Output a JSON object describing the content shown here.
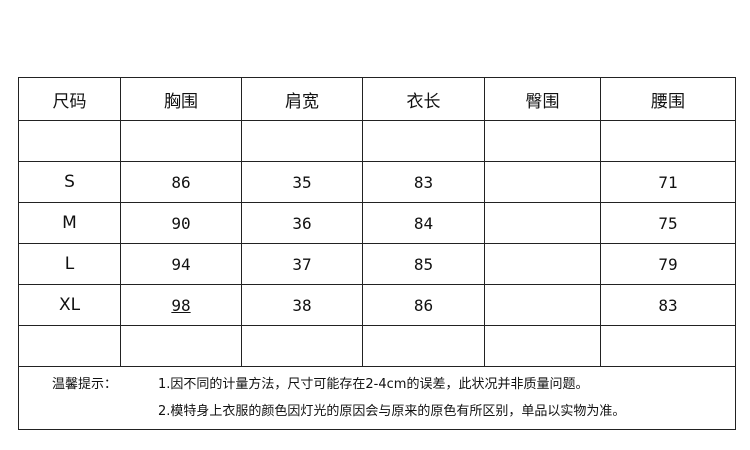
{
  "table": {
    "headers": [
      "尺码",
      "胸围",
      "肩宽",
      "衣长",
      "臀围",
      "腰围"
    ],
    "rows": [
      [
        "",
        "",
        "",
        "",
        "",
        ""
      ],
      [
        "S",
        "86",
        "35",
        "83",
        "",
        "71"
      ],
      [
        "M",
        "90",
        "36",
        "84",
        "",
        "75"
      ],
      [
        "L",
        "94",
        "37",
        "85",
        "",
        "79"
      ],
      [
        "XL",
        "98",
        "38",
        "86",
        "",
        "83"
      ],
      [
        "",
        "",
        "",
        "",
        "",
        ""
      ]
    ]
  },
  "notes": {
    "label": "温馨提示：",
    "items": [
      "1.因不同的计量方法，尺寸可能存在2-4cm的误差，此状况并非质量问题。",
      "2.模特身上衣服的颜色因灯光的原因会与原来的原色有所区别，单品以实物为准。"
    ]
  }
}
